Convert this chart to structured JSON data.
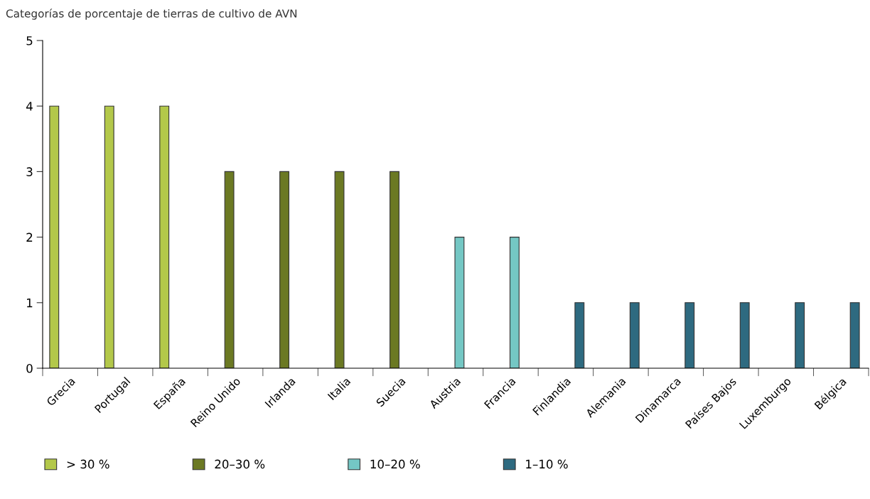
{
  "chart_data": {
    "type": "bar",
    "title": "Categorías de porcentaje de tierras de cultivo de AVN",
    "categories": [
      "Grecia",
      "Portugal",
      "España",
      "Reino Unido",
      "Irlanda",
      "Italia",
      "Suecia",
      "Austria",
      "Francia",
      "Finlandia",
      "Alemania",
      "Dinamarca",
      "Países Bajos",
      "Luxemburgo",
      "Bélgica"
    ],
    "series": [
      {
        "name": "> 30 %",
        "color": "#b3c84a",
        "values": [
          4,
          4,
          4,
          null,
          null,
          null,
          null,
          null,
          null,
          null,
          null,
          null,
          null,
          null,
          null
        ]
      },
      {
        "name": "20–30 %",
        "color": "#6b7923",
        "values": [
          null,
          null,
          null,
          3,
          3,
          3,
          3,
          null,
          null,
          null,
          null,
          null,
          null,
          null,
          null
        ]
      },
      {
        "name": "10–20 %",
        "color": "#74c7c4",
        "values": [
          null,
          null,
          null,
          null,
          null,
          null,
          null,
          2,
          2,
          null,
          null,
          null,
          null,
          null,
          null
        ]
      },
      {
        "name": "1–10 %",
        "color": "#2e6a80",
        "values": [
          null,
          null,
          null,
          null,
          null,
          null,
          null,
          null,
          null,
          1,
          1,
          1,
          1,
          1,
          1
        ]
      }
    ],
    "ylim": [
      0,
      5
    ],
    "yticks": [
      0,
      1,
      2,
      3,
      4,
      5
    ],
    "grid": false,
    "legend": "bottom left"
  }
}
